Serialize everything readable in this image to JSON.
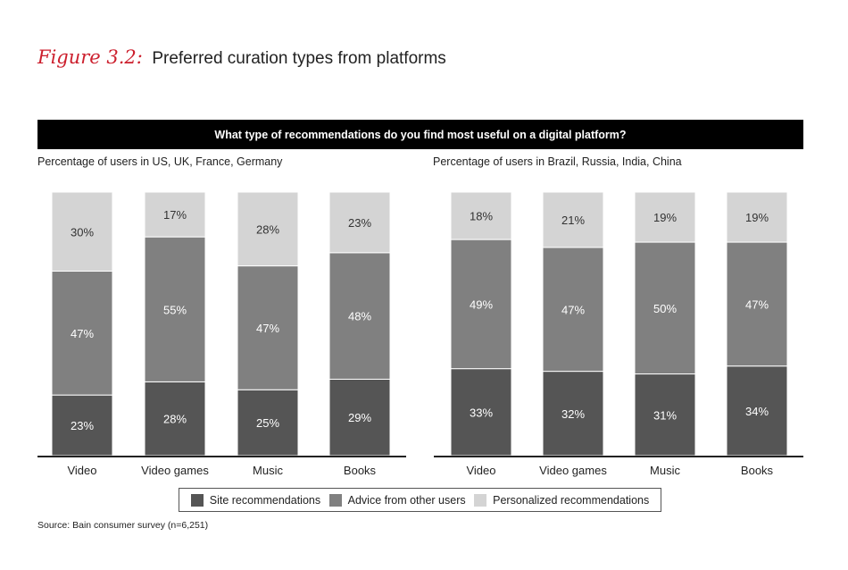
{
  "figure": {
    "label": "Figure 3.2:",
    "title": "Preferred curation types from platforms"
  },
  "banner": "What type of recommendations do you find most useful on a digital platform?",
  "colors": {
    "site": "#555555",
    "advice": "#808080",
    "personalized": "#d4d4d4"
  },
  "legend": [
    {
      "label": "Site recommendations",
      "color": "#555555"
    },
    {
      "label": "Advice from other users",
      "color": "#808080"
    },
    {
      "label": "Personalized recommendations",
      "color": "#d4d4d4"
    }
  ],
  "source": "Source: Bain consumer survey (n=6,251)",
  "chart_data": [
    {
      "type": "bar",
      "stacked": true,
      "subtitle": "Percentage of users in US, UK, France, Germany",
      "categories": [
        "Video",
        "Video games",
        "Music",
        "Books"
      ],
      "ylim": [
        0,
        100
      ],
      "series": [
        {
          "name": "Site recommendations",
          "values": [
            23,
            28,
            25,
            29
          ]
        },
        {
          "name": "Advice from other users",
          "values": [
            47,
            55,
            47,
            48
          ]
        },
        {
          "name": "Personalized recommendations",
          "values": [
            30,
            17,
            28,
            23
          ]
        }
      ]
    },
    {
      "type": "bar",
      "stacked": true,
      "subtitle": "Percentage of users in Brazil, Russia, India, China",
      "categories": [
        "Video",
        "Video games",
        "Music",
        "Books"
      ],
      "ylim": [
        0,
        100
      ],
      "series": [
        {
          "name": "Site recommendations",
          "values": [
            33,
            32,
            31,
            34
          ]
        },
        {
          "name": "Advice from other users",
          "values": [
            49,
            47,
            50,
            47
          ]
        },
        {
          "name": "Personalized recommendations",
          "values": [
            18,
            21,
            19,
            19
          ]
        }
      ]
    }
  ]
}
